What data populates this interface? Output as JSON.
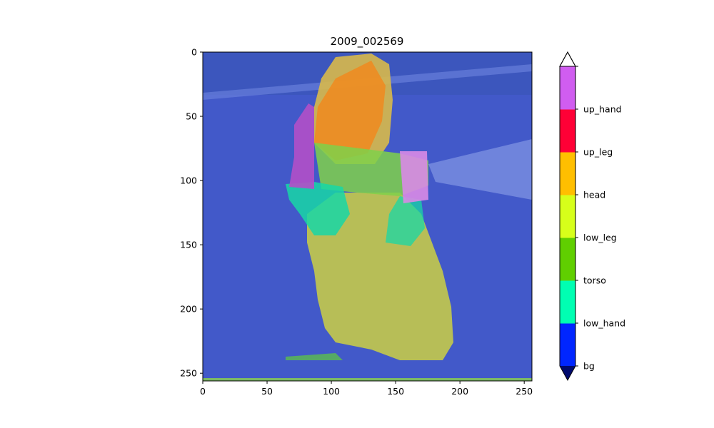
{
  "figure": {
    "title": "2009_002569",
    "image_axes": {
      "x_ticks": [
        "0",
        "50",
        "100",
        "150",
        "200",
        "250"
      ],
      "y_ticks": [
        "0",
        "50",
        "100",
        "150",
        "200",
        "250"
      ],
      "xlim": [
        0,
        256
      ],
      "ylim": [
        256,
        0
      ]
    },
    "scene": {
      "background_color": "#4259c9",
      "overlay_colors": {
        "bg": "#4259c9",
        "low_hand": "#18d7a6",
        "torso": "#5fcc3a",
        "low_leg": "#c4c94a",
        "head": "#e6c033",
        "up_leg": "#f08a1e",
        "up_hand": "#c455d8"
      }
    },
    "colorbar": {
      "labels": [
        "bg",
        "low_hand",
        "torso",
        "low_leg",
        "head",
        "up_leg",
        "up_hand"
      ],
      "segment_colors": [
        "#0026ff",
        "#00ffb2",
        "#60cf00",
        "#d7ff1a",
        "#ffbf00",
        "#ff0036",
        "#d05df0"
      ],
      "under_color": "#000a6e",
      "over_color": "#ffffff",
      "extend": "both"
    }
  }
}
